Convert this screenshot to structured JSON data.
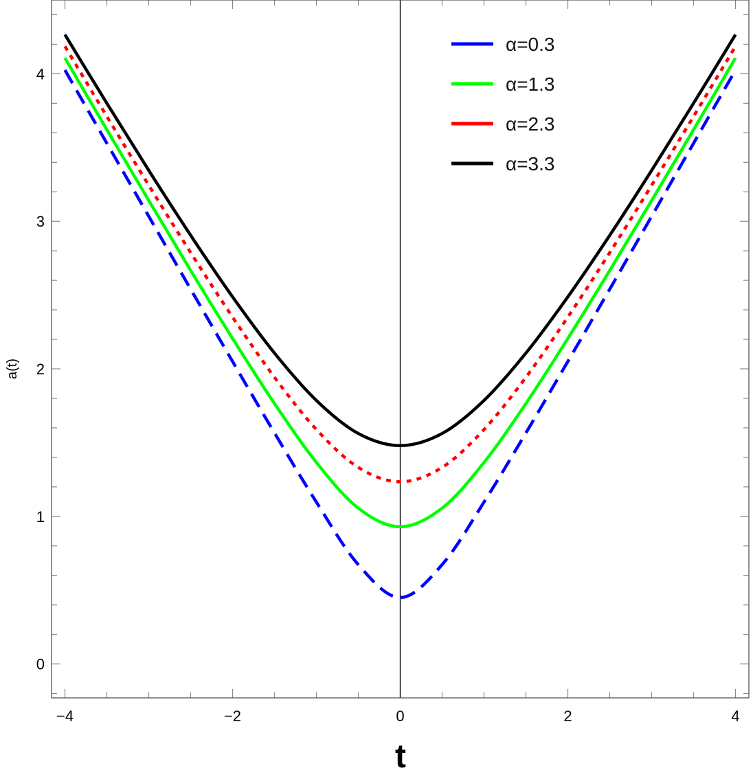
{
  "chart_data": {
    "type": "line",
    "title": "",
    "xlabel": "t",
    "ylabel": "a(t)",
    "xlim": [
      -4.16,
      4.16
    ],
    "ylim": [
      -0.23,
      4.5
    ],
    "xticks": [
      "-4",
      "-2",
      "0",
      "2",
      "4"
    ],
    "yticks": [
      "0",
      "1",
      "2",
      "3",
      "4"
    ],
    "grid": false,
    "legend_position": "top-right",
    "x": [
      -4,
      -3.5,
      -3,
      -2.5,
      -2,
      -1.5,
      -1,
      -0.5,
      0,
      0.5,
      1,
      1.5,
      2,
      2.5,
      3,
      3.5,
      4
    ],
    "series": [
      {
        "name": "α=0.3",
        "color": "#0000ff",
        "style": "dashed",
        "values": [
          4.025,
          3.529,
          3.034,
          2.54,
          2.05,
          1.566,
          1.097,
          0.673,
          0.45,
          0.673,
          1.097,
          1.566,
          2.05,
          2.54,
          3.034,
          3.529,
          4.025
        ]
      },
      {
        "name": "α=1.3",
        "color": "#00ff00",
        "style": "solid",
        "values": [
          4.107,
          3.621,
          3.141,
          2.667,
          2.206,
          1.765,
          1.366,
          1.056,
          0.93,
          1.056,
          1.366,
          1.765,
          2.206,
          2.667,
          3.141,
          3.621,
          4.107
        ]
      },
      {
        "name": "α=2.3",
        "color": "#ff0000",
        "style": "dotted",
        "values": [
          4.186,
          3.711,
          3.244,
          2.788,
          2.351,
          1.943,
          1.589,
          1.332,
          1.235,
          1.332,
          1.589,
          1.943,
          2.351,
          2.788,
          3.244,
          3.711,
          4.186
        ]
      },
      {
        "name": "α=3.3",
        "color": "#000000",
        "style": "solid",
        "values": [
          4.265,
          3.8,
          3.345,
          2.905,
          2.488,
          2.107,
          1.786,
          1.562,
          1.48,
          1.562,
          1.786,
          2.107,
          2.488,
          2.905,
          3.345,
          3.8,
          4.265
        ]
      }
    ]
  }
}
